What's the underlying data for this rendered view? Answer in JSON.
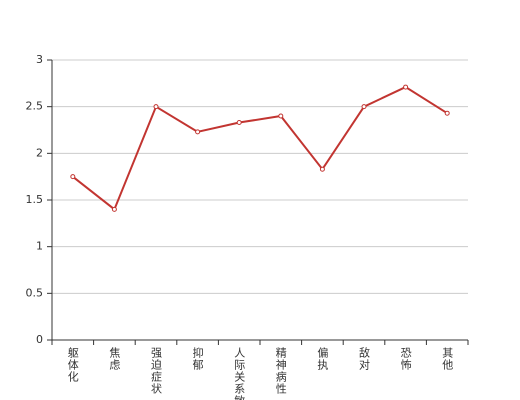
{
  "chart_data": {
    "type": "line",
    "categories": [
      "躯体化",
      "焦虑",
      "强迫症状",
      "抑郁",
      "人际关系敏感",
      "精神病性",
      "偏执",
      "敌对",
      "恐怖",
      "其他"
    ],
    "values": [
      1.75,
      1.4,
      2.5,
      2.23,
      2.33,
      2.4,
      1.83,
      2.5,
      2.71,
      2.43
    ],
    "color": "#c23531",
    "ylim": [
      0,
      3
    ],
    "yticks": [
      0,
      0.5,
      1,
      1.5,
      2,
      2.5,
      3
    ],
    "grid": true
  }
}
